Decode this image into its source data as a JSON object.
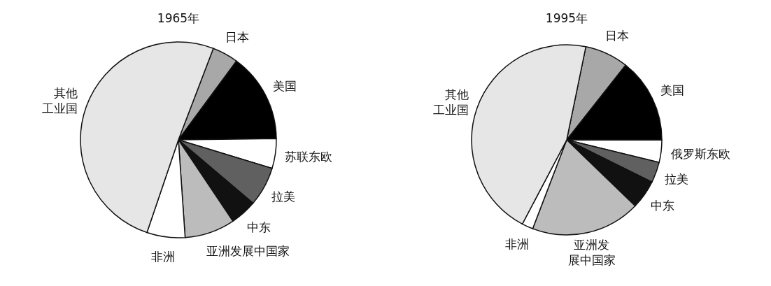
{
  "chart_data": [
    {
      "type": "pie",
      "title": "1965年",
      "categories": [
        "日本",
        "美国",
        "苏联东欧",
        "拉美",
        "中东",
        "亚洲发展中国家",
        "非洲",
        "其他工业国"
      ],
      "values": [
        4.3,
        14.7,
        4.9,
        6.5,
        4.4,
        8.3,
        6.3,
        50.6
      ],
      "colors": [
        "#a8a8a8",
        "#000000",
        "#ffffff",
        "#606060",
        "#111111",
        "#bcbcbc",
        "#ffffff",
        "#e6e6e6"
      ]
    },
    {
      "type": "pie",
      "title": "1995年",
      "categories": [
        "日本",
        "美国",
        "俄罗斯东欧",
        "拉美",
        "中东",
        "亚洲发展中国家",
        "非洲",
        "其他工业国"
      ],
      "values": [
        7.4,
        14.4,
        3.8,
        3.5,
        4.9,
        18.6,
        1.9,
        45.5
      ],
      "colors": [
        "#a8a8a8",
        "#000000",
        "#ffffff",
        "#606060",
        "#111111",
        "#bcbcbc",
        "#ffffff",
        "#e6e6e6"
      ]
    }
  ]
}
